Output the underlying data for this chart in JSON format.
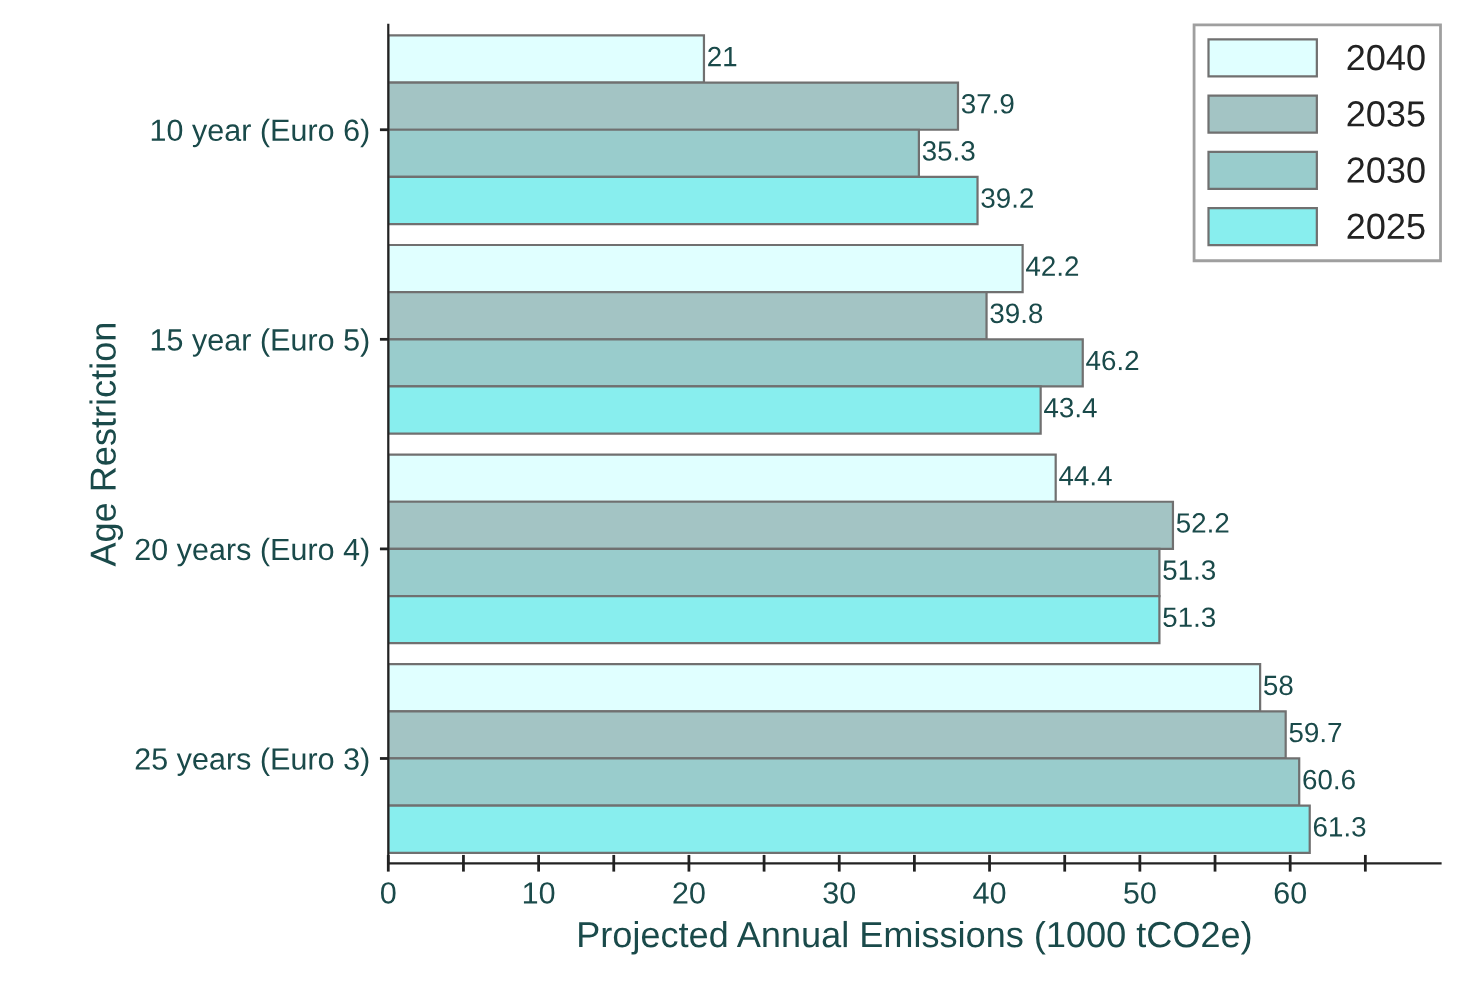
{
  "chart_data": {
    "type": "bar",
    "orientation": "horizontal",
    "xlabel": "Projected Annual Emissions (1000 tCO2e)",
    "ylabel": "Age Restriction",
    "categories": [
      "10 year (Euro 6)",
      "15 year (Euro 5)",
      "20 years (Euro 4)",
      "25 years (Euro 3)"
    ],
    "series": [
      {
        "name": "2040",
        "color": "#e0ffff",
        "values": [
          21,
          42.2,
          44.4,
          58
        ]
      },
      {
        "name": "2035",
        "color": "#a3c4c4",
        "values": [
          37.9,
          39.8,
          52.2,
          59.7
        ]
      },
      {
        "name": "2030",
        "color": "#99cccc",
        "values": [
          35.3,
          46.2,
          51.3,
          60.6
        ]
      },
      {
        "name": "2025",
        "color": "#88eeee",
        "values": [
          39.2,
          43.4,
          51.3,
          61.3
        ]
      }
    ],
    "xlim": [
      0,
      70
    ],
    "xticks": [
      0,
      {
        "value": 5,
        "label": null
      },
      10,
      {
        "value": 15,
        "label": null
      },
      20,
      {
        "value": 25,
        "label": null
      },
      30,
      {
        "value": 35,
        "label": null
      },
      40,
      {
        "value": 45,
        "label": null
      },
      50,
      {
        "value": 55,
        "label": null
      },
      60,
      {
        "value": 65,
        "label": null
      }
    ],
    "data_labels": true,
    "legend": "top right",
    "grid": false
  }
}
